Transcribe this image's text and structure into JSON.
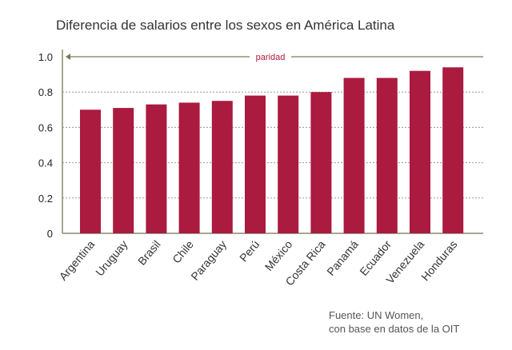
{
  "chart_data": {
    "type": "bar",
    "title": "Diferencia de salarios entre los sexos en América Latina",
    "categories": [
      "Argentina",
      "Uruguay",
      "Brasil",
      "Chile",
      "Paraguay",
      "Perú",
      "México",
      "Costa Rica",
      "Panamá",
      "Ecuador",
      "Venezuela",
      "Honduras"
    ],
    "values": [
      0.7,
      0.71,
      0.73,
      0.74,
      0.75,
      0.78,
      0.78,
      0.8,
      0.88,
      0.88,
      0.92,
      0.94
    ],
    "ylim": [
      0,
      1.0
    ],
    "yticks": [
      "0",
      "0.2",
      "0.4",
      "0.6",
      "0.8",
      "1.0"
    ],
    "grid": true,
    "bar_color": "#ab1a3f",
    "annotation": {
      "label": "paridad",
      "value": 1.0
    },
    "source": [
      "Fuente: UN Women,",
      "con base en datos de la OIT"
    ]
  }
}
